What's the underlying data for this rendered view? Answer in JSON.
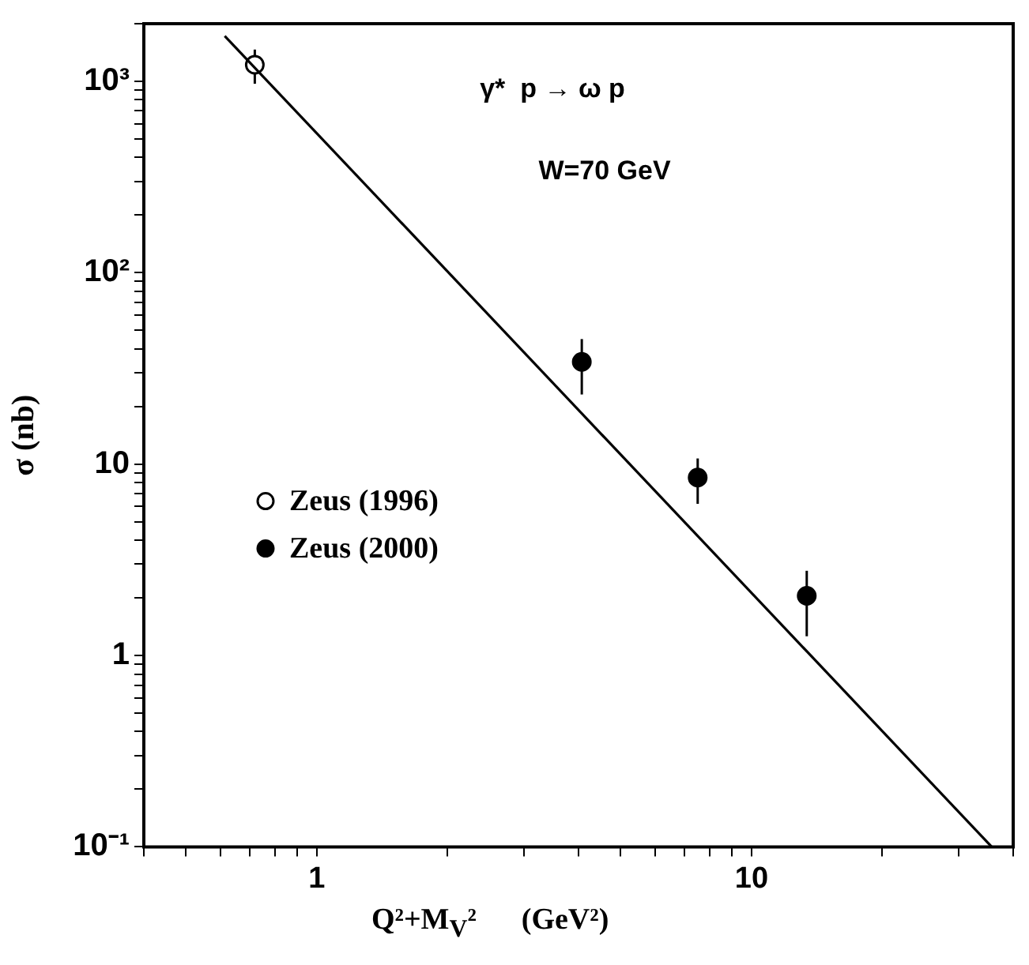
{
  "chart_data": {
    "type": "scatter",
    "xlabel": "Q²+M$_{V}$²      (GeV²)",
    "ylabel": "σ (nb)",
    "annotations": [
      "γ*  p → ω p",
      "W=70 GeV"
    ],
    "log": "xy",
    "xlim": [
      0.4,
      40
    ],
    "ylim": [
      0.1,
      2000
    ],
    "xticks": [
      {
        "value": 0.4,
        "label": null
      },
      {
        "value": 0.5,
        "label": null
      },
      {
        "value": 0.6,
        "label": null
      },
      {
        "value": 0.7,
        "label": null
      },
      {
        "value": 0.8,
        "label": null
      },
      {
        "value": 0.9,
        "label": null
      },
      1,
      {
        "value": 2,
        "label": null
      },
      {
        "value": 3,
        "label": null
      },
      {
        "value": 4,
        "label": null
      },
      {
        "value": 5,
        "label": null
      },
      {
        "value": 6,
        "label": null
      },
      {
        "value": 7,
        "label": null
      },
      {
        "value": 8,
        "label": null
      },
      {
        "value": 9,
        "label": null
      },
      10,
      {
        "value": 20,
        "label": null
      },
      {
        "value": 30,
        "label": null
      },
      {
        "value": 40,
        "label": null
      }
    ],
    "yticks": [
      {
        "value": 0.1,
        "label": "10⁻¹"
      },
      {
        "value": 0.2,
        "label": null
      },
      {
        "value": 0.3,
        "label": null
      },
      {
        "value": 0.4,
        "label": null
      },
      {
        "value": 0.5,
        "label": null
      },
      {
        "value": 0.6,
        "label": null
      },
      {
        "value": 0.7,
        "label": null
      },
      {
        "value": 0.8,
        "label": null
      },
      {
        "value": 0.9,
        "label": null
      },
      1,
      {
        "value": 2,
        "label": null
      },
      {
        "value": 3,
        "label": null
      },
      {
        "value": 4,
        "label": null
      },
      {
        "value": 5,
        "label": null
      },
      {
        "value": 6,
        "label": null
      },
      {
        "value": 7,
        "label": null
      },
      {
        "value": 8,
        "label": null
      },
      {
        "value": 9,
        "label": null
      },
      10,
      {
        "value": 20,
        "label": null
      },
      {
        "value": 30,
        "label": null
      },
      {
        "value": 40,
        "label": null
      },
      {
        "value": 50,
        "label": null
      },
      {
        "value": 60,
        "label": null
      },
      {
        "value": 70,
        "label": null
      },
      {
        "value": 80,
        "label": null
      },
      {
        "value": 90,
        "label": null
      },
      {
        "value": 100,
        "label": "10²"
      },
      {
        "value": 200,
        "label": null
      },
      {
        "value": 300,
        "label": null
      },
      {
        "value": 400,
        "label": null
      },
      {
        "value": 500,
        "label": null
      },
      {
        "value": 600,
        "label": null
      },
      {
        "value": 700,
        "label": null
      },
      {
        "value": 800,
        "label": null
      },
      {
        "value": 900,
        "label": null
      },
      {
        "value": 1000,
        "label": "10³"
      },
      {
        "value": 2000,
        "label": null
      }
    ],
    "grid": false,
    "legend": "left",
    "series": [
      {
        "type": "line",
        "color": "#000000",
        "marker": "none",
        "x": [
          0.614,
          35.7
        ],
        "values": [
          1725,
          0.1
        ]
      },
      {
        "name": "Zeus (1996)",
        "color": "#000000",
        "marker": "circle",
        "x": [
          0.72
        ],
        "values": [
          1220
        ],
        "errors": [
          [
            971,
            1465
          ]
        ]
      },
      {
        "name": "Zeus (2000)",
        "color": "#000000",
        "marker": "circle",
        "x": [
          4.07,
          7.52,
          13.4
        ],
        "values": [
          34.2,
          8.5,
          2.05
        ],
        "errors": [
          [
            23.1,
            45
          ],
          [
            6.2,
            10.7
          ],
          [
            1.26,
            2.77
          ]
        ]
      }
    ]
  }
}
